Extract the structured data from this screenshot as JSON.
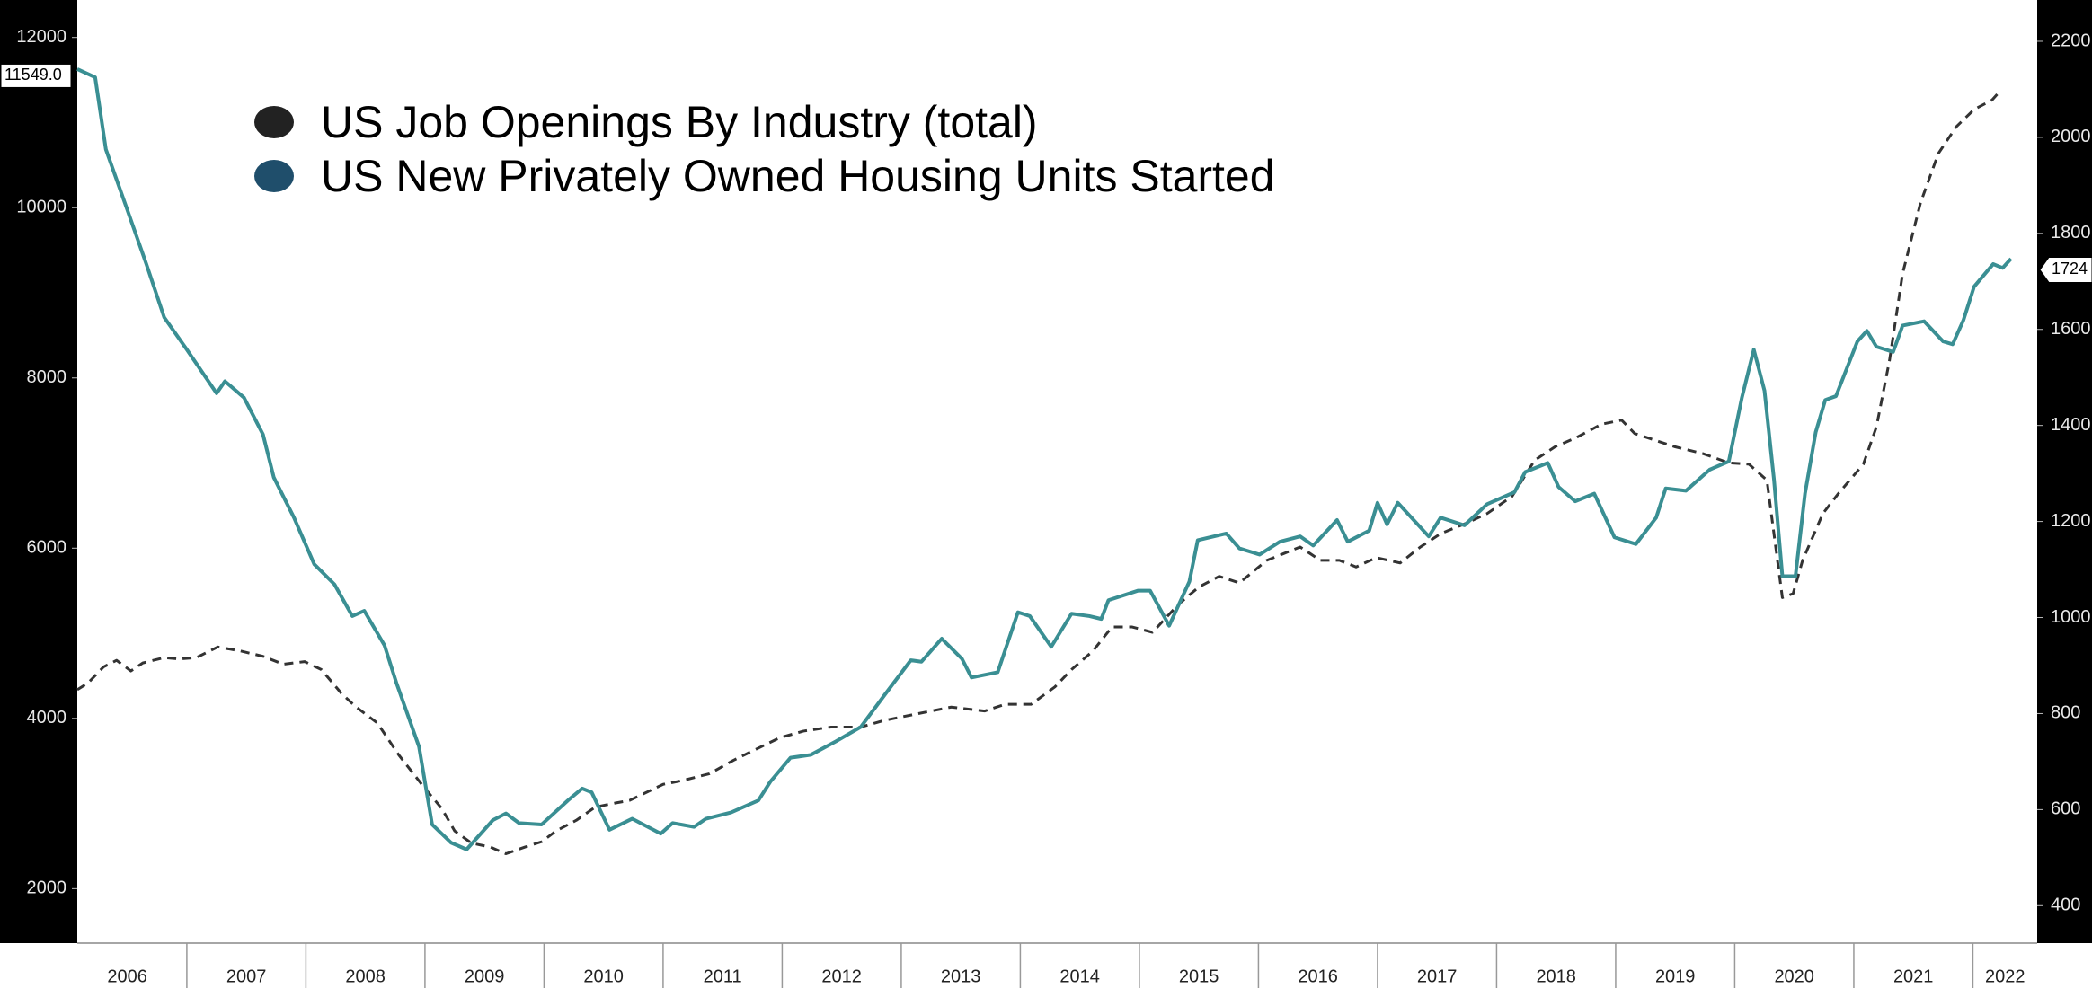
{
  "chart_data": {
    "type": "line",
    "xlim": [
      2006.08,
      2022.54
    ],
    "xticks": [
      {
        "value": 2006.5,
        "label": "2006"
      },
      {
        "value": 2007.5,
        "label": "2007"
      },
      {
        "value": 2008.5,
        "label": "2008"
      },
      {
        "value": 2009.5,
        "label": "2009"
      },
      {
        "value": 2010.5,
        "label": "2010"
      },
      {
        "value": 2011.5,
        "label": "2011"
      },
      {
        "value": 2012.5,
        "label": "2012"
      },
      {
        "value": 2013.5,
        "label": "2013"
      },
      {
        "value": 2014.5,
        "label": "2014"
      },
      {
        "value": 2015.5,
        "label": "2015"
      },
      {
        "value": 2016.5,
        "label": "2016"
      },
      {
        "value": 2017.5,
        "label": "2017"
      },
      {
        "value": 2018.5,
        "label": "2018"
      },
      {
        "value": 2019.5,
        "label": "2019"
      },
      {
        "value": 2020.5,
        "label": "2020"
      },
      {
        "value": 2021.5,
        "label": "2021"
      },
      {
        "value": 2022.27,
        "label": "2022"
      }
    ],
    "ylim": [
      1360,
      12440
    ],
    "yticks": [
      2000,
      4000,
      6000,
      8000,
      10000,
      12000
    ],
    "y2lim": [
      322,
      2286
    ],
    "y2ticks": [
      400,
      600,
      800,
      1000,
      1200,
      1400,
      1600,
      1800,
      2000,
      2200
    ],
    "grid": false,
    "legend": "top-left",
    "series": [
      {
        "name": "US Job Openings By Industry (total)",
        "color": "#333333",
        "legend_color": "#222222",
        "dashed": true,
        "axis": "y",
        "x": [
          2006.08,
          2006.17,
          2006.3,
          2006.41,
          2006.53,
          2006.63,
          2006.81,
          2006.94,
          2007.08,
          2007.26,
          2007.45,
          2007.64,
          2007.81,
          2007.99,
          2008.13,
          2008.3,
          2008.42,
          2008.6,
          2008.78,
          2008.99,
          2009.14,
          2009.25,
          2009.39,
          2009.55,
          2009.68,
          2009.84,
          2009.98,
          2010.1,
          2010.27,
          2010.43,
          2010.6,
          2010.72,
          2011.0,
          2011.17,
          2011.39,
          2011.59,
          2011.75,
          2011.98,
          2012.18,
          2012.41,
          2012.66,
          2012.86,
          2013.14,
          2013.42,
          2013.7,
          2013.87,
          2014.09,
          2014.29,
          2014.43,
          2014.61,
          2014.77,
          2014.94,
          2015.11,
          2015.33,
          2015.5,
          2015.67,
          2015.84,
          2016.07,
          2016.21,
          2016.35,
          2016.52,
          2016.68,
          2016.82,
          2016.99,
          2017.19,
          2017.36,
          2017.53,
          2017.75,
          2017.92,
          2018.13,
          2018.32,
          2018.49,
          2018.67,
          2018.88,
          2019.05,
          2019.16,
          2019.33,
          2019.5,
          2019.73,
          2019.95,
          2020.12,
          2020.27,
          2020.4,
          2020.49,
          2020.57,
          2020.74,
          2020.87,
          2021.08,
          2021.19,
          2021.3,
          2021.41,
          2021.56,
          2021.71,
          2021.86,
          2022.01,
          2022.16,
          2022.23
        ],
        "values": [
          4337,
          4416,
          4604,
          4682,
          4557,
          4651,
          4714,
          4698,
          4714,
          4839,
          4792,
          4729,
          4636,
          4667,
          4573,
          4291,
          4135,
          3946,
          3570,
          3194,
          2943,
          2677,
          2535,
          2488,
          2410,
          2488,
          2551,
          2677,
          2802,
          2958,
          3006,
          3037,
          3225,
          3272,
          3350,
          3507,
          3617,
          3773,
          3851,
          3898,
          3898,
          3977,
          4055,
          4133,
          4086,
          4165,
          4165,
          4369,
          4573,
          4792,
          5074,
          5074,
          5011,
          5342,
          5544,
          5669,
          5591,
          5857,
          5935,
          6014,
          5857,
          5857,
          5779,
          5889,
          5826,
          6014,
          6171,
          6296,
          6406,
          6609,
          7033,
          7190,
          7299,
          7456,
          7504,
          7347,
          7268,
          7190,
          7112,
          7002,
          6986,
          6798,
          5419,
          5466,
          5857,
          6406,
          6641,
          6986,
          7425,
          8208,
          9227,
          10057,
          10637,
          10950,
          11154,
          11264,
          11373
        ]
      },
      {
        "name": "US New Privately Owned Housing Units Started",
        "color": "#3a8f93",
        "legend_color": "#1f4e6b",
        "dashed": false,
        "axis": "y2",
        "x": [
          2006.08,
          2006.23,
          2006.32,
          2006.49,
          2006.66,
          2006.81,
          2007.0,
          2007.25,
          2007.32,
          2007.48,
          2007.64,
          2007.73,
          2007.9,
          2008.07,
          2008.24,
          2008.39,
          2008.49,
          2008.66,
          2008.76,
          2008.95,
          2009.06,
          2009.22,
          2009.35,
          2009.57,
          2009.68,
          2009.79,
          2009.98,
          2010.2,
          2010.32,
          2010.4,
          2010.55,
          2010.74,
          2010.98,
          2011.08,
          2011.26,
          2011.36,
          2011.57,
          2011.8,
          2011.9,
          2012.07,
          2012.24,
          2012.45,
          2012.66,
          2012.87,
          2013.08,
          2013.17,
          2013.34,
          2013.51,
          2013.59,
          2013.81,
          2013.98,
          2014.08,
          2014.26,
          2014.43,
          2014.58,
          2014.68,
          2014.74,
          2014.99,
          2015.09,
          2015.25,
          2015.42,
          2015.49,
          2015.73,
          2015.84,
          2016.01,
          2016.18,
          2016.35,
          2016.46,
          2016.66,
          2016.75,
          2016.93,
          2017.0,
          2017.08,
          2017.17,
          2017.43,
          2017.53,
          2017.73,
          2017.92,
          2018.15,
          2018.24,
          2018.43,
          2018.52,
          2018.66,
          2018.82,
          2018.99,
          2019.17,
          2019.34,
          2019.42,
          2019.59,
          2019.79,
          2019.95,
          2020.06,
          2020.16,
          2020.25,
          2020.33,
          2020.4,
          2020.51,
          2020.59,
          2020.68,
          2020.76,
          2020.85,
          2021.03,
          2021.11,
          2021.19,
          2021.33,
          2021.41,
          2021.59,
          2021.75,
          2021.83,
          2021.92,
          2022.01,
          2022.17,
          2022.25,
          2022.32
        ],
        "values": [
          2142,
          2125,
          1975,
          1856,
          1736,
          1625,
          1558,
          1467,
          1492,
          1458,
          1381,
          1292,
          1208,
          1111,
          1069,
          1003,
          1014,
          942,
          864,
          731,
          569,
          531,
          517,
          578,
          592,
          572,
          569,
          619,
          644,
          636,
          558,
          581,
          550,
          572,
          564,
          581,
          594,
          619,
          658,
          708,
          714,
          742,
          772,
          842,
          911,
          908,
          956,
          914,
          875,
          886,
          1011,
          1003,
          939,
          1008,
          1003,
          997,
          1036,
          1056,
          1056,
          983,
          1075,
          1161,
          1175,
          1144,
          1131,
          1158,
          1169,
          1150,
          1203,
          1158,
          1181,
          1239,
          1194,
          1239,
          1169,
          1208,
          1192,
          1236,
          1261,
          1303,
          1322,
          1272,
          1242,
          1258,
          1167,
          1153,
          1208,
          1269,
          1264,
          1308,
          1325,
          1458,
          1558,
          1472,
          1286,
          1086,
          1086,
          1258,
          1386,
          1453,
          1461,
          1575,
          1597,
          1564,
          1553,
          1608,
          1617,
          1575,
          1569,
          1619,
          1689,
          1736,
          1728,
          1747
        ]
      }
    ],
    "annotations": [
      {
        "text": "11549.0",
        "axis": "y",
        "value": 11549
      },
      {
        "text": "1724",
        "axis": "y2",
        "value": 1724
      }
    ]
  }
}
